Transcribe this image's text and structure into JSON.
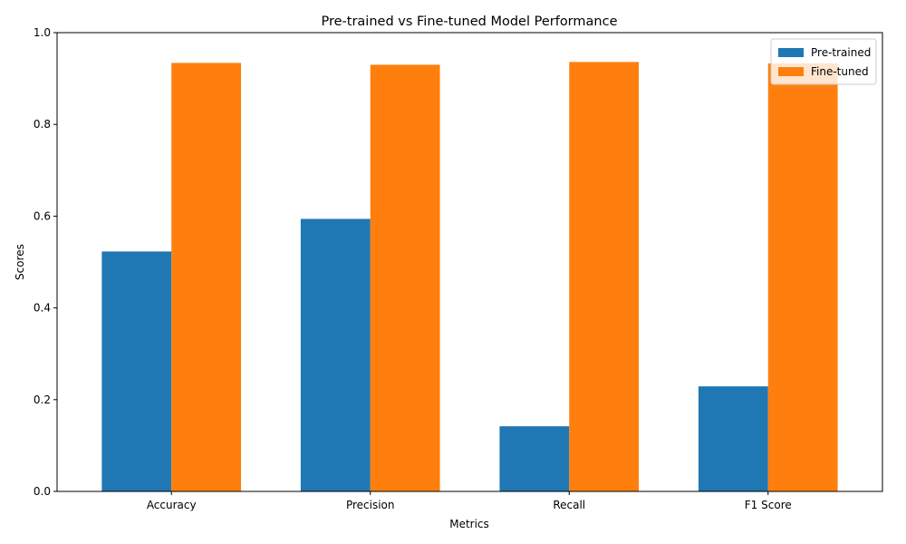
{
  "chart_data": {
    "type": "bar",
    "title": "Pre-trained vs Fine-tuned Model Performance",
    "xlabel": "Metrics",
    "ylabel": "Scores",
    "categories": [
      "Accuracy",
      "Precision",
      "Recall",
      "F1 Score"
    ],
    "series": [
      {
        "name": "Pre-trained",
        "color": "#1f77b4",
        "values": [
          0.523,
          0.594,
          0.142,
          0.229
        ]
      },
      {
        "name": "Fine-tuned",
        "color": "#ff7f0e",
        "values": [
          0.934,
          0.93,
          0.936,
          0.933
        ]
      }
    ],
    "ylim": [
      0,
      1.0
    ],
    "yticks": [
      "0.0",
      "0.2",
      "0.4",
      "0.6",
      "0.8",
      "1.0"
    ],
    "legend_position": "top-right",
    "grid": false
  }
}
